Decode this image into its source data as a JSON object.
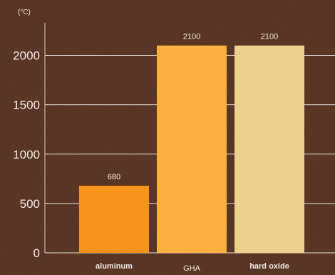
{
  "chart_data": {
    "type": "bar",
    "unit_label": "(°C)",
    "categories": [
      "aluminum",
      "GHA",
      "hard oxide"
    ],
    "category_label_bold": [
      true,
      false,
      true
    ],
    "values": [
      680,
      2100,
      2100
    ],
    "data_labels": [
      "680",
      "2100",
      "2100"
    ],
    "colors": [
      "#f7941d",
      "#fbb040",
      "#edd18f"
    ],
    "y_ticks": [
      0,
      500,
      1000,
      1500,
      2000
    ],
    "ylim": [
      0,
      2250
    ],
    "grid": true
  },
  "colors": {
    "background": "#4a2618",
    "text": "#f3ebe3",
    "gridline": "#e9e2dc",
    "axis": "#d8d0c8"
  }
}
